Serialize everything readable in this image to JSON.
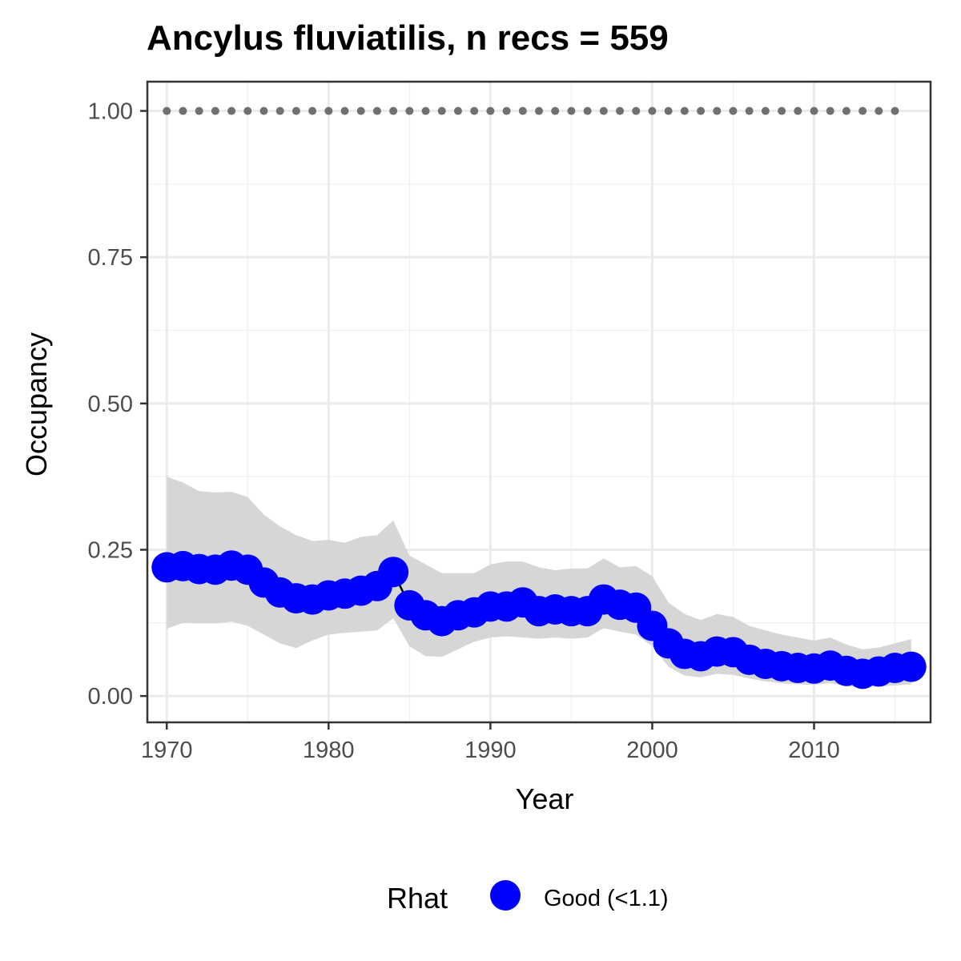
{
  "chart_data": {
    "type": "line",
    "title": "Ancylus fluviatilis, n recs = 559",
    "xlabel": "Year",
    "ylabel": "Occupancy",
    "xlim": [
      1968.8,
      2017.2
    ],
    "ylim": [
      -0.045,
      1.05
    ],
    "x_ticks": [
      1970,
      1980,
      1990,
      2000,
      2010
    ],
    "y_ticks": [
      0,
      0.25,
      0.5,
      0.75,
      1.0
    ],
    "y_tick_labels": [
      "0.00",
      "0.25",
      "0.50",
      "0.75",
      "1.00"
    ],
    "grid": true,
    "legend": {
      "title": "Rhat",
      "position": "bottom",
      "entries": [
        {
          "label": "Good (<1.1)",
          "color": "#0000ff"
        }
      ]
    },
    "colors": {
      "point": "#0000ff",
      "line": "#000000",
      "ribbon": "#d6d6d6",
      "reference": "#707070"
    },
    "series": [
      {
        "x": [
          1970,
          1971,
          1972,
          1973,
          1974,
          1975,
          1976,
          1977,
          1978,
          1979,
          1980,
          1981,
          1982,
          1983,
          1984,
          1985,
          1986,
          1987,
          1988,
          1989,
          1990,
          1991,
          1992,
          1993,
          1994,
          1995,
          1996,
          1997,
          1998,
          1999,
          2000,
          2001,
          2002,
          2003,
          2004,
          2005,
          2006,
          2007,
          2008,
          2009,
          2010,
          2011,
          2012,
          2013,
          2014,
          2015,
          2016
        ],
        "y": [
          0.22,
          0.222,
          0.217,
          0.216,
          0.223,
          0.216,
          0.194,
          0.177,
          0.167,
          0.165,
          0.172,
          0.175,
          0.18,
          0.188,
          0.212,
          0.155,
          0.138,
          0.128,
          0.138,
          0.143,
          0.153,
          0.153,
          0.16,
          0.145,
          0.148,
          0.145,
          0.145,
          0.165,
          0.156,
          0.151,
          0.12,
          0.09,
          0.072,
          0.068,
          0.076,
          0.075,
          0.062,
          0.055,
          0.051,
          0.048,
          0.047,
          0.052,
          0.043,
          0.038,
          0.042,
          0.048,
          0.05
        ],
        "lower": [
          0.115,
          0.125,
          0.124,
          0.124,
          0.127,
          0.12,
          0.105,
          0.09,
          0.082,
          0.095,
          0.105,
          0.108,
          0.11,
          0.112,
          0.133,
          0.085,
          0.068,
          0.067,
          0.08,
          0.093,
          0.1,
          0.102,
          0.1,
          0.098,
          0.1,
          0.098,
          0.1,
          0.116,
          0.11,
          0.105,
          0.085,
          0.05,
          0.035,
          0.032,
          0.038,
          0.036,
          0.03,
          0.025,
          0.022,
          0.02,
          0.019,
          0.022,
          0.017,
          0.014,
          0.016,
          0.018,
          0.02
        ],
        "upper": [
          0.375,
          0.365,
          0.35,
          0.348,
          0.349,
          0.34,
          0.31,
          0.29,
          0.275,
          0.265,
          0.267,
          0.262,
          0.272,
          0.275,
          0.3,
          0.24,
          0.225,
          0.21,
          0.21,
          0.21,
          0.225,
          0.23,
          0.23,
          0.22,
          0.215,
          0.218,
          0.218,
          0.235,
          0.22,
          0.222,
          0.205,
          0.16,
          0.14,
          0.13,
          0.14,
          0.135,
          0.12,
          0.112,
          0.105,
          0.1,
          0.095,
          0.1,
          0.088,
          0.08,
          0.083,
          0.09,
          0.097
        ]
      }
    ],
    "reference_points": {
      "x": [
        1970,
        1971,
        1972,
        1973,
        1974,
        1975,
        1976,
        1977,
        1978,
        1979,
        1980,
        1981,
        1982,
        1983,
        1984,
        1985,
        1986,
        1987,
        1988,
        1989,
        1990,
        1991,
        1992,
        1993,
        1994,
        1995,
        1996,
        1997,
        1998,
        1999,
        2000,
        2001,
        2002,
        2003,
        2004,
        2005,
        2006,
        2007,
        2008,
        2009,
        2010,
        2011,
        2012,
        2013,
        2014,
        2015
      ],
      "y": 1.0
    }
  }
}
